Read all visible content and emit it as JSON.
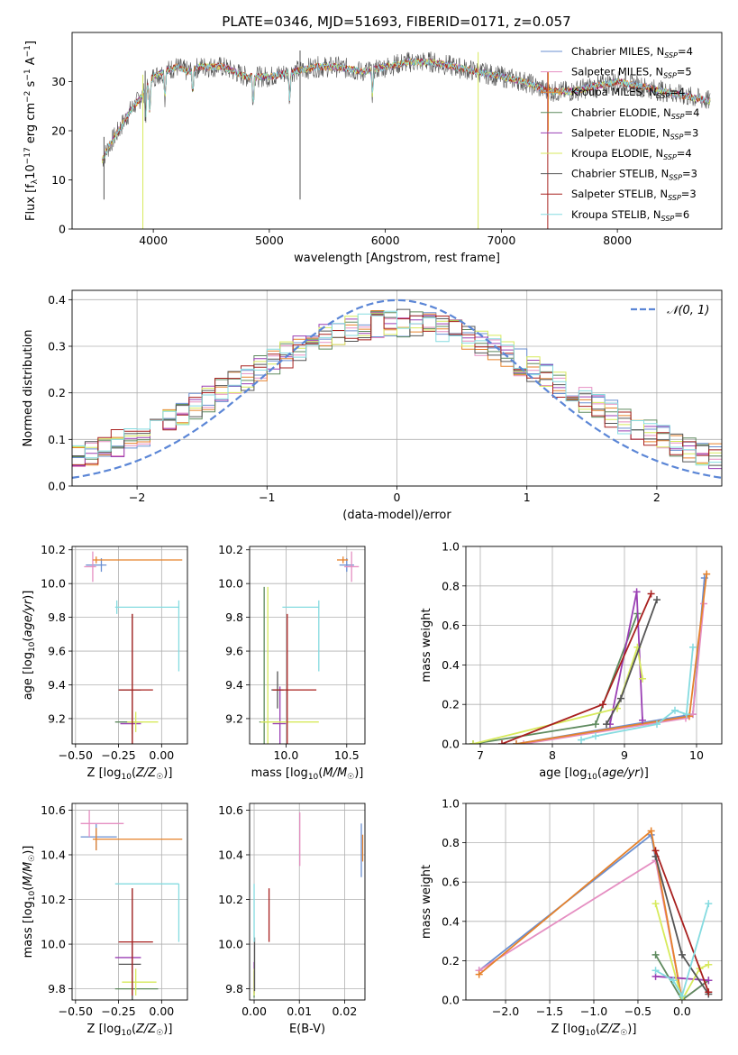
{
  "figure_title": "PLATE=0346, MJD=51693, FIBERID=0171, z=0.057",
  "models": [
    {
      "name": "Chabrier MILES",
      "nssp": "4",
      "color": "#6a8fd1"
    },
    {
      "name": "Salpeter MILES",
      "nssp": "5",
      "color": "#e58fc2"
    },
    {
      "name": "Kroupa MILES",
      "nssp": "4",
      "color": "#e6822b"
    },
    {
      "name": "Chabrier ELODIE",
      "nssp": "4",
      "color": "#5e8a5e"
    },
    {
      "name": "Salpeter ELODIE",
      "nssp": "3",
      "color": "#9a3fb4"
    },
    {
      "name": "Kroupa ELODIE",
      "nssp": "4",
      "color": "#d7ea5c"
    },
    {
      "name": "Chabrier STELIB",
      "nssp": "3",
      "color": "#555555"
    },
    {
      "name": "Salpeter STELIB",
      "nssp": "3",
      "color": "#a8201f"
    },
    {
      "name": "Kroupa STELIB",
      "nssp": "6",
      "color": "#85dbe0"
    }
  ],
  "chart_data": [
    {
      "id": "spectrum",
      "type": "line",
      "title": "PLATE=0346, MJD=51693, FIBERID=0171, z=0.057",
      "xlabel": "wavelength [Angstrom, rest frame]",
      "ylabel": "Flux [f_λ 10^-17 erg cm^-2 s^-1 A^-1]",
      "xlim": [
        3300,
        8900
      ],
      "ylim": [
        0,
        40
      ],
      "xticks": [
        4000,
        5000,
        6000,
        7000,
        8000
      ],
      "yticks": [
        0,
        10,
        20,
        30
      ],
      "grid": false,
      "legend": "right",
      "continuum": {
        "x": [
          3560,
          3620,
          3700,
          3800,
          3900,
          4000,
          4100,
          4200,
          4300,
          4400,
          4600,
          4800,
          5000,
          5200,
          5400,
          5600,
          5800,
          6000,
          6200,
          6400,
          6600,
          6800,
          7000,
          7200,
          7400,
          7600,
          7800,
          8000,
          8200,
          8400,
          8600,
          8800
        ],
        "y": [
          14,
          17,
          20,
          24,
          27,
          31,
          32,
          33,
          32,
          33,
          33,
          31,
          31,
          32,
          33,
          33,
          32,
          33,
          34,
          34,
          33,
          32,
          31,
          30,
          28,
          28,
          29,
          30,
          29,
          28,
          27,
          26
        ]
      },
      "series_labels": [
        "Chabrier MILES",
        "Salpeter MILES",
        "Kroupa MILES",
        "Chabrier ELODIE",
        "Salpeter ELODIE",
        "Kroupa ELODIE",
        "Chabrier STELIB",
        "Salpeter STELIB",
        "Kroupa STELIB"
      ]
    },
    {
      "id": "residual_hist",
      "type": "line",
      "xlabel": "(data-model)/error",
      "ylabel": "Normed distribution",
      "xlim": [
        -2.5,
        2.5
      ],
      "ylim": [
        0,
        0.42
      ],
      "xticks": [
        -2,
        -1,
        0,
        1,
        2
      ],
      "yticks": [
        0.0,
        0.1,
        0.2,
        0.3,
        0.4
      ],
      "grid": true,
      "legend": "top-right",
      "reference_curve": {
        "name": "𝒩(0, 1)",
        "mu": 0,
        "sigma": 1
      }
    },
    {
      "id": "age_vs_Z",
      "type": "scatter",
      "xlabel": "Z [log10(Z/Z☉)]",
      "ylabel": "age [log10(age/yr)]",
      "xlim": [
        -0.52,
        0.15
      ],
      "ylim": [
        9.05,
        10.22
      ],
      "xticks": [
        -0.5,
        -0.25,
        0.0
      ],
      "yticks": [
        9.2,
        9.4,
        9.6,
        9.8,
        10.0,
        10.2
      ],
      "grid": true,
      "points": [
        {
          "x": -0.35,
          "y": 10.11,
          "xerr": [
            0.09,
            0.03
          ],
          "yerr": 0.04,
          "model": 0
        },
        {
          "x": -0.4,
          "y": 10.1,
          "xerr": [
            0.05,
            0.02
          ],
          "yerr": 0.09,
          "model": 1
        },
        {
          "x": -0.38,
          "y": 10.14,
          "xerr": [
            0.02,
            0.5
          ],
          "yerr": 0.02,
          "model": 2
        },
        {
          "x": -0.17,
          "y": 9.18,
          "xerr": [
            0.1,
            0.06
          ],
          "yerr": 0.07,
          "model": 3
        },
        {
          "x": -0.17,
          "y": 9.17,
          "xerr": [
            0.07,
            0.05
          ],
          "yerr": 0.03,
          "model": 4
        },
        {
          "x": -0.15,
          "y": 9.18,
          "xerr": [
            0.05,
            0.13
          ],
          "yerr": 0.06,
          "model": 5
        },
        {
          "x": -0.17,
          "y": 9.37,
          "xerr": [
            0.08,
            0.05
          ],
          "yerr": 0.45,
          "model": 6
        },
        {
          "x": -0.17,
          "y": 9.37,
          "xerr": [
            0.08,
            0.12
          ],
          "yerr": 0.45,
          "model": 7
        },
        {
          "x": -0.26,
          "y": 9.86,
          "xerr": [
            0.01,
            0.36
          ],
          "yerr": 0.04,
          "model": 8
        },
        {
          "x": 0.1,
          "y": 9.69,
          "xerr": [
            0.0,
            0.0
          ],
          "yerr": 0.21,
          "model": 8
        }
      ]
    },
    {
      "id": "age_vs_mass",
      "type": "scatter",
      "xlabel": "mass [log10(M/M☉)]",
      "ylabel": "",
      "xlim": [
        9.7,
        10.65
      ],
      "ylim": [
        9.05,
        10.22
      ],
      "xticks": [
        10.0,
        10.5
      ],
      "yticks": [
        9.2,
        9.4,
        9.6,
        9.8,
        10.0,
        10.2
      ],
      "grid": true,
      "points": [
        {
          "x": 10.5,
          "y": 10.11,
          "xerr": [
            0.06,
            0.06
          ],
          "yerr": 0.04,
          "model": 0
        },
        {
          "x": 10.54,
          "y": 10.1,
          "xerr": [
            0.06,
            0.06
          ],
          "yerr": 0.09,
          "model": 1
        },
        {
          "x": 10.47,
          "y": 10.14,
          "xerr": [
            0.05,
            0.04
          ],
          "yerr": 0.02,
          "model": 2
        },
        {
          "x": 9.82,
          "y": 9.18,
          "xerr": [
            0.04,
            0.04
          ],
          "yerr": 0.8,
          "model": 3
        },
        {
          "x": 9.95,
          "y": 9.17,
          "xerr": [
            0.06,
            0.05
          ],
          "yerr": 0.22,
          "model": 4
        },
        {
          "x": 9.85,
          "y": 9.18,
          "xerr": [
            0.06,
            0.42
          ],
          "yerr": 0.8,
          "model": 5
        },
        {
          "x": 9.93,
          "y": 9.37,
          "xerr": [
            0.05,
            0.05
          ],
          "yerr": 0.11,
          "model": 6
        },
        {
          "x": 10.01,
          "y": 9.37,
          "xerr": [
            0.12,
            0.24
          ],
          "yerr": 0.45,
          "model": 7
        },
        {
          "x": 10.27,
          "y": 9.69,
          "xerr": [
            0.0,
            0.0
          ],
          "yerr": 0.21,
          "model": 8
        },
        {
          "x": 10.12,
          "y": 9.86,
          "xerr": [
            0.15,
            0.15
          ],
          "yerr": 0.0,
          "model": 8
        }
      ]
    },
    {
      "id": "weight_vs_age",
      "type": "line",
      "xlabel": "age [log10(age/yr)]",
      "ylabel": "mass weight",
      "xlim": [
        6.8,
        10.35
      ],
      "ylim": [
        0.0,
        1.0
      ],
      "xticks": [
        7,
        8,
        9,
        10
      ],
      "yticks": [
        0.0,
        0.2,
        0.4,
        0.6,
        0.8,
        1.0
      ],
      "grid": true,
      "series": [
        {
          "model": 0,
          "x": [
            7.5,
            9.95,
            10.11
          ],
          "y": [
            0.0,
            0.15,
            0.84
          ]
        },
        {
          "model": 1,
          "x": [
            7.6,
            9.85,
            9.95,
            10.1
          ],
          "y": [
            0.0,
            0.13,
            0.15,
            0.71
          ]
        },
        {
          "model": 2,
          "x": [
            7.5,
            9.9,
            10.14
          ],
          "y": [
            0.0,
            0.14,
            0.86
          ]
        },
        {
          "model": 3,
          "x": [
            6.9,
            8.6,
            9.18
          ],
          "y": [
            0.0,
            0.1,
            0.66
          ]
        },
        {
          "model": 4,
          "x": [
            8.8,
            9.17,
            9.25
          ],
          "y": [
            0.1,
            0.77,
            0.12
          ]
        },
        {
          "model": 5,
          "x": [
            6.9,
            8.9,
            9.18,
            9.25
          ],
          "y": [
            0.0,
            0.18,
            0.49,
            0.33
          ]
        },
        {
          "model": 6,
          "x": [
            8.75,
            8.95,
            9.45
          ],
          "y": [
            0.1,
            0.23,
            0.73
          ]
        },
        {
          "model": 7,
          "x": [
            7.3,
            8.7,
            9.37
          ],
          "y": [
            0.0,
            0.2,
            0.76
          ]
        },
        {
          "model": 8,
          "x": [
            8.4,
            8.6,
            9.45,
            9.7,
            9.86,
            9.95
          ],
          "y": [
            0.02,
            0.04,
            0.1,
            0.17,
            0.15,
            0.49
          ]
        }
      ]
    },
    {
      "id": "mass_vs_Z",
      "type": "scatter",
      "xlabel": "Z [log10(Z/Z☉)]",
      "ylabel": "mass [log10(M/M☉)]",
      "xlim": [
        -0.52,
        0.15
      ],
      "ylim": [
        9.75,
        10.63
      ],
      "xticks": [
        -0.5,
        -0.25,
        0.0
      ],
      "yticks": [
        9.8,
        10.0,
        10.2,
        10.4,
        10.6
      ],
      "grid": true,
      "points": [
        {
          "x": -0.38,
          "y": 10.48,
          "xerr": [
            0.09,
            0.12
          ],
          "yerr": 0.06,
          "model": 0
        },
        {
          "x": -0.42,
          "y": 10.54,
          "xerr": [
            0.05,
            0.2
          ],
          "yerr": 0.06,
          "model": 1
        },
        {
          "x": -0.38,
          "y": 10.47,
          "xerr": [
            0.02,
            0.5
          ],
          "yerr": 0.05,
          "model": 2
        },
        {
          "x": -0.17,
          "y": 9.8,
          "xerr": [
            0.1,
            0.15
          ],
          "yerr": 0.05,
          "model": 3
        },
        {
          "x": -0.17,
          "y": 9.94,
          "xerr": [
            0.1,
            0.05
          ],
          "yerr": 0.07,
          "model": 4
        },
        {
          "x": -0.15,
          "y": 9.83,
          "xerr": [
            0.08,
            0.12
          ],
          "yerr": 0.06,
          "model": 5
        },
        {
          "x": -0.17,
          "y": 9.91,
          "xerr": [
            0.08,
            0.05
          ],
          "yerr": 0.34,
          "model": 6
        },
        {
          "x": -0.17,
          "y": 10.01,
          "xerr": [
            0.08,
            0.12
          ],
          "yerr": 0.24,
          "model": 7
        },
        {
          "x": -0.26,
          "y": 10.27,
          "xerr": [
            0.01,
            0.36
          ],
          "yerr": 0.0,
          "model": 8
        },
        {
          "x": 0.1,
          "y": 10.14,
          "xerr": [
            0.0,
            0.0
          ],
          "yerr": 0.13,
          "model": 8
        }
      ]
    },
    {
      "id": "mass_vs_ebv",
      "type": "scatter",
      "xlabel": "E(B-V)",
      "ylabel": "",
      "xlim": [
        -0.001,
        0.0245
      ],
      "ylim": [
        9.75,
        10.63
      ],
      "xticks": [
        0.0,
        0.01,
        0.02
      ],
      "yticks": [
        9.8,
        10.0,
        10.2,
        10.4,
        10.6
      ],
      "grid": true,
      "points": [
        {
          "x": 0.0237,
          "y": 10.42,
          "xerr": [
            0,
            0
          ],
          "yerr": 0.12,
          "model": 0
        },
        {
          "x": 0.0101,
          "y": 10.47,
          "xerr": [
            0,
            0
          ],
          "yerr": 0.12,
          "model": 1
        },
        {
          "x": 0.024,
          "y": 10.43,
          "xerr": [
            0,
            0
          ],
          "yerr": 0.06,
          "model": 2
        },
        {
          "x": 0.0,
          "y": 9.82,
          "xerr": [
            0,
            0
          ],
          "yerr": 0.06,
          "model": 3
        },
        {
          "x": 0.0,
          "y": 9.85,
          "xerr": [
            0,
            0
          ],
          "yerr": 0.07,
          "model": 4
        },
        {
          "x": 0.0,
          "y": 9.83,
          "xerr": [
            0,
            0
          ],
          "yerr": 0.06,
          "model": 5
        },
        {
          "x": 0.0001,
          "y": 9.91,
          "xerr": [
            0,
            0
          ],
          "yerr": 0.12,
          "model": 6
        },
        {
          "x": 0.0033,
          "y": 10.13,
          "xerr": [
            0,
            0
          ],
          "yerr": 0.12,
          "model": 7
        },
        {
          "x": 0.0,
          "y": 10.14,
          "xerr": [
            0,
            0
          ],
          "yerr": 0.13,
          "model": 8
        }
      ]
    },
    {
      "id": "weight_vs_Z",
      "type": "line",
      "xlabel": "Z [log10(Z/Z☉)]",
      "ylabel": "mass weight",
      "xlim": [
        -2.45,
        0.45
      ],
      "ylim": [
        0.0,
        1.0
      ],
      "xticks": [
        -2.0,
        -1.5,
        -1.0,
        -0.5,
        0.0
      ],
      "yticks": [
        0.0,
        0.2,
        0.4,
        0.6,
        0.8,
        1.0
      ],
      "grid": true,
      "series": [
        {
          "model": 0,
          "x": [
            -2.3,
            -0.35,
            0.0
          ],
          "y": [
            0.15,
            0.84,
            0.0
          ]
        },
        {
          "model": 1,
          "x": [
            -2.3,
            -0.3,
            0.0,
            0.3
          ],
          "y": [
            0.15,
            0.71,
            0.0,
            0.1
          ]
        },
        {
          "model": 2,
          "x": [
            -2.3,
            -0.35,
            0.0
          ],
          "y": [
            0.13,
            0.86,
            0.0
          ]
        },
        {
          "model": 3,
          "x": [
            -0.3,
            0.0,
            0.3
          ],
          "y": [
            0.23,
            0.0,
            0.1
          ]
        },
        {
          "model": 4,
          "x": [
            -0.3,
            0.3
          ],
          "y": [
            0.12,
            0.1
          ]
        },
        {
          "model": 5,
          "x": [
            -0.3,
            0.0,
            0.2,
            0.3
          ],
          "y": [
            0.49,
            0.0,
            0.16,
            0.18
          ]
        },
        {
          "model": 6,
          "x": [
            -0.3,
            0.0,
            0.3
          ],
          "y": [
            0.73,
            0.23,
            0.03
          ]
        },
        {
          "model": 7,
          "x": [
            -0.3,
            0.3
          ],
          "y": [
            0.76,
            0.04
          ]
        },
        {
          "model": 8,
          "x": [
            -0.3,
            -0.1,
            0.0,
            0.3
          ],
          "y": [
            0.15,
            0.1,
            0.02,
            0.49
          ]
        }
      ]
    }
  ]
}
